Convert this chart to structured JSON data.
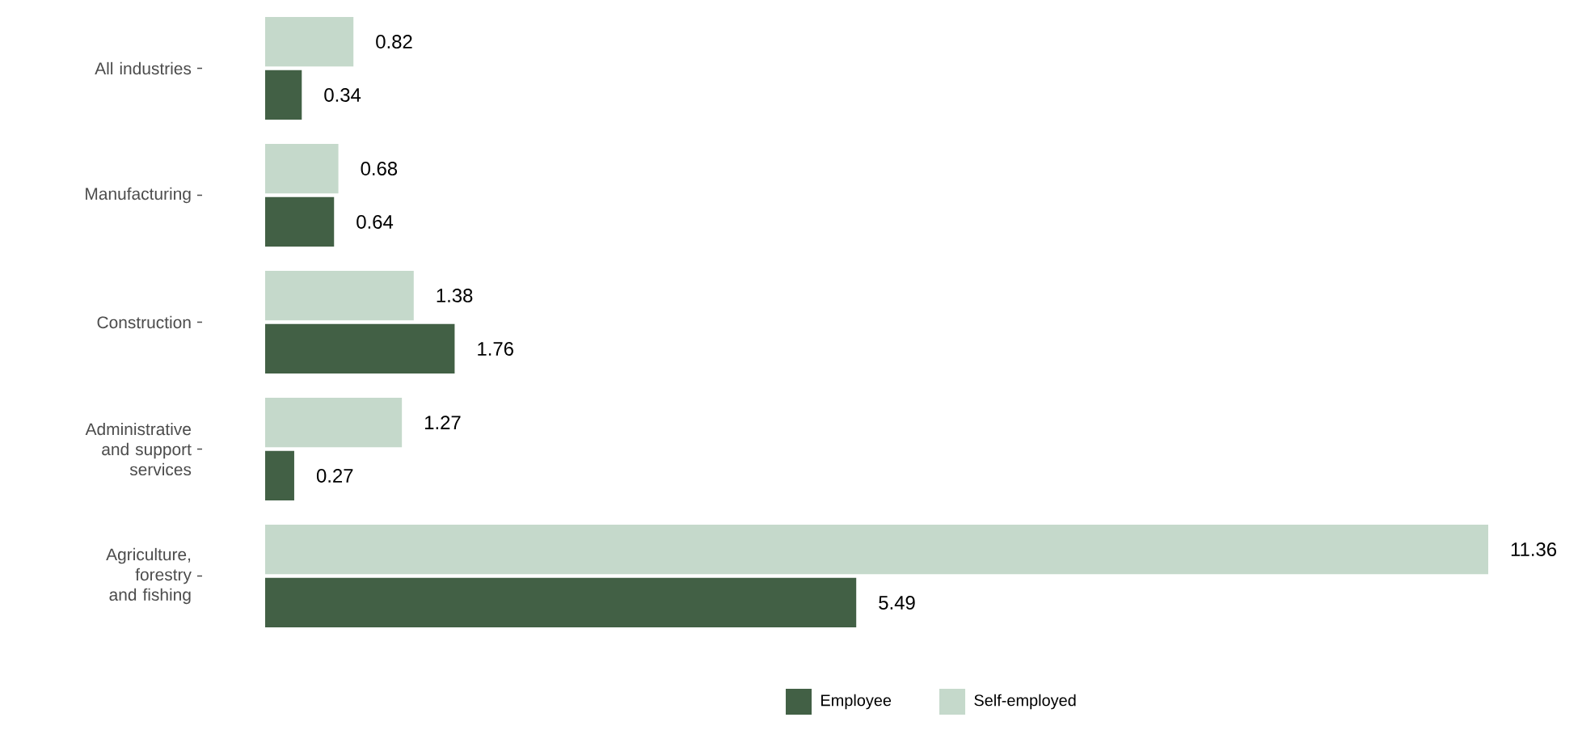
{
  "chart_data": {
    "type": "bar",
    "orientation": "horizontal",
    "categories": [
      "All industries",
      "Manufacturing",
      "Construction",
      "Administrative and support services",
      "Agriculture, forestry and fishing"
    ],
    "series": [
      {
        "name": "Employee",
        "color": "#426045",
        "values": [
          0.34,
          0.64,
          1.76,
          0.27,
          5.49
        ]
      },
      {
        "name": "Self-employed",
        "color": "#c5d9cb",
        "values": [
          0.82,
          0.68,
          1.38,
          1.27,
          11.36
        ]
      }
    ],
    "data_labels": true,
    "legend": "bottom",
    "grid": false
  }
}
